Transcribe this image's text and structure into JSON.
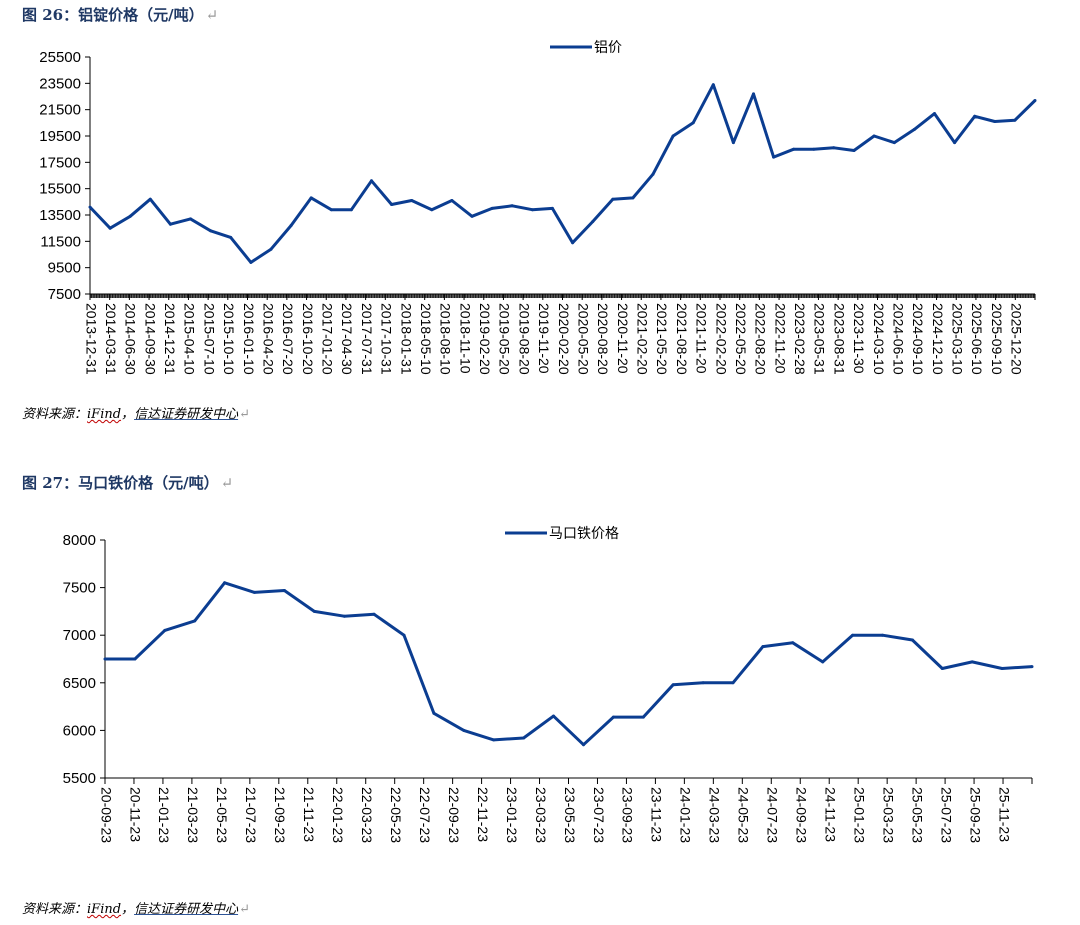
{
  "figure1": {
    "title": "图 26：铝锭价格（元/吨）",
    "source": {
      "prefix": "资料来源：",
      "ifind": "iFind",
      "sep": "，",
      "org": "信达证券研发中心"
    }
  },
  "figure2": {
    "title": "图 27：马口铁价格（元/吨）",
    "source": {
      "prefix": "资料来源：",
      "ifind": "iFind",
      "sep": "，",
      "org": "信达证券研发中心"
    }
  },
  "return_mark": "↵",
  "colors": {
    "line": "#0b3d91",
    "axis": "#000000"
  },
  "chart_data": [
    {
      "type": "line",
      "title": "",
      "legend": "top-center",
      "grid": false,
      "series": [
        {
          "name": "铝价",
          "x": [
            "2013-12-31",
            "2014-03-31",
            "2014-06-30",
            "2014-09-30",
            "2014-12-31",
            "2015-04-10",
            "2015-07-10",
            "2015-10-10",
            "2016-01-10",
            "2016-04-20",
            "2016-07-20",
            "2016-10-20",
            "2017-01-20",
            "2017-04-30",
            "2017-07-31",
            "2017-10-31",
            "2018-01-31",
            "2018-05-10",
            "2018-08-10",
            "2018-11-10",
            "2019-02-20",
            "2019-05-20",
            "2019-08-20",
            "2019-11-20",
            "2020-02-20",
            "2020-05-20",
            "2020-08-20",
            "2020-11-20",
            "2021-02-20",
            "2021-05-20",
            "2021-08-20",
            "2021-11-20",
            "2022-02-20",
            "2022-05-20",
            "2022-08-20",
            "2022-11-20",
            "2023-02-28",
            "2023-05-31",
            "2023-08-31",
            "2023-11-30",
            "2024-03-10",
            "2024-06-10",
            "2024-09-10",
            "2024-12-10",
            "2025-03-10",
            "2025-06-10",
            "2025-09-10",
            "2025-12-20"
          ],
          "values": [
            14100,
            12500,
            13400,
            14700,
            12800,
            13200,
            12300,
            11800,
            9900,
            10900,
            12700,
            14800,
            13900,
            13900,
            16100,
            14300,
            14600,
            13900,
            14600,
            13400,
            14000,
            14200,
            13900,
            14000,
            11400,
            13000,
            14700,
            14800,
            16600,
            19500,
            20500,
            23400,
            19000,
            22700,
            17900,
            18500,
            18500,
            18600,
            18400,
            19500,
            19000,
            20000,
            21200,
            19000,
            21000,
            20600,
            20700,
            22200
          ]
        }
      ],
      "x_tick_labels": [
        "2013-12-31",
        "2014-03-31",
        "2014-06-30",
        "2014-09-30",
        "2014-12-31",
        "2015-04-10",
        "2015-07-10",
        "2015-10-10",
        "2016-01-10",
        "2016-04-20",
        "2016-07-20",
        "2016-10-20",
        "2017-01-20",
        "2017-04-30",
        "2017-07-31",
        "2017-10-31",
        "2018-01-31",
        "2018-05-10",
        "2018-08-10",
        "2018-11-10",
        "2019-02-20",
        "2019-05-20",
        "2019-08-20",
        "2019-11-20",
        "2020-02-20",
        "2020-05-20",
        "2020-08-20",
        "2020-11-20",
        "2021-02-20",
        "2021-05-20",
        "2021-08-20",
        "2021-11-20",
        "2022-02-20",
        "2022-05-20",
        "2022-08-20",
        "2022-11-20",
        "2023-02-28",
        "2023-05-31",
        "2023-08-31",
        "2023-11-30",
        "2024-03-10",
        "2024-06-10",
        "2024-09-10",
        "2024-12-10",
        "2025-03-10",
        "2025-06-10",
        "2025-09-10",
        "2025-12-20"
      ],
      "y_ticks": [
        7500,
        9500,
        11500,
        13500,
        15500,
        17500,
        19500,
        21500,
        23500,
        25500
      ],
      "ylim": [
        7500,
        25500
      ]
    },
    {
      "type": "line",
      "title": "",
      "legend": "top-center",
      "grid": false,
      "series": [
        {
          "name": "马口铁价格",
          "x": [
            "20-09-23",
            "20-11-23",
            "21-01-23",
            "21-03-23",
            "21-05-23",
            "21-07-23",
            "21-09-23",
            "21-11-23",
            "22-01-23",
            "22-03-23",
            "22-05-23",
            "22-07-23",
            "22-09-23",
            "22-11-23",
            "23-01-23",
            "23-03-23",
            "23-05-23",
            "23-07-23",
            "23-09-23",
            "23-11-23",
            "24-01-23",
            "24-03-23",
            "24-05-23",
            "24-07-23",
            "24-09-23",
            "24-11-23",
            "25-01-23",
            "25-03-23",
            "25-05-23",
            "25-07-23",
            "25-09-23",
            "25-11-23"
          ],
          "values": [
            6750,
            6750,
            7050,
            7150,
            7550,
            7450,
            7470,
            7250,
            7200,
            7220,
            7000,
            6180,
            6000,
            5900,
            5920,
            6150,
            5850,
            6140,
            6140,
            6480,
            6500,
            6500,
            6880,
            6920,
            6720,
            7000,
            7000,
            6950,
            6650,
            6720,
            6650,
            6670
          ]
        }
      ],
      "x_tick_labels": [
        "20-09-23",
        "20-11-23",
        "21-01-23",
        "21-03-23",
        "21-05-23",
        "21-07-23",
        "21-09-23",
        "21-11-23",
        "22-01-23",
        "22-03-23",
        "22-05-23",
        "22-07-23",
        "22-09-23",
        "22-11-23",
        "23-01-23",
        "23-03-23",
        "23-05-23",
        "23-07-23",
        "23-09-23",
        "23-11-23",
        "24-01-23",
        "24-03-23",
        "24-05-23",
        "24-07-23",
        "24-09-23",
        "24-11-23",
        "25-01-23",
        "25-03-23",
        "25-05-23",
        "25-07-23",
        "25-09-23",
        "25-11-23"
      ],
      "y_ticks": [
        5500,
        6000,
        6500,
        7000,
        7500,
        8000
      ],
      "ylim": [
        5500,
        8000
      ]
    }
  ]
}
